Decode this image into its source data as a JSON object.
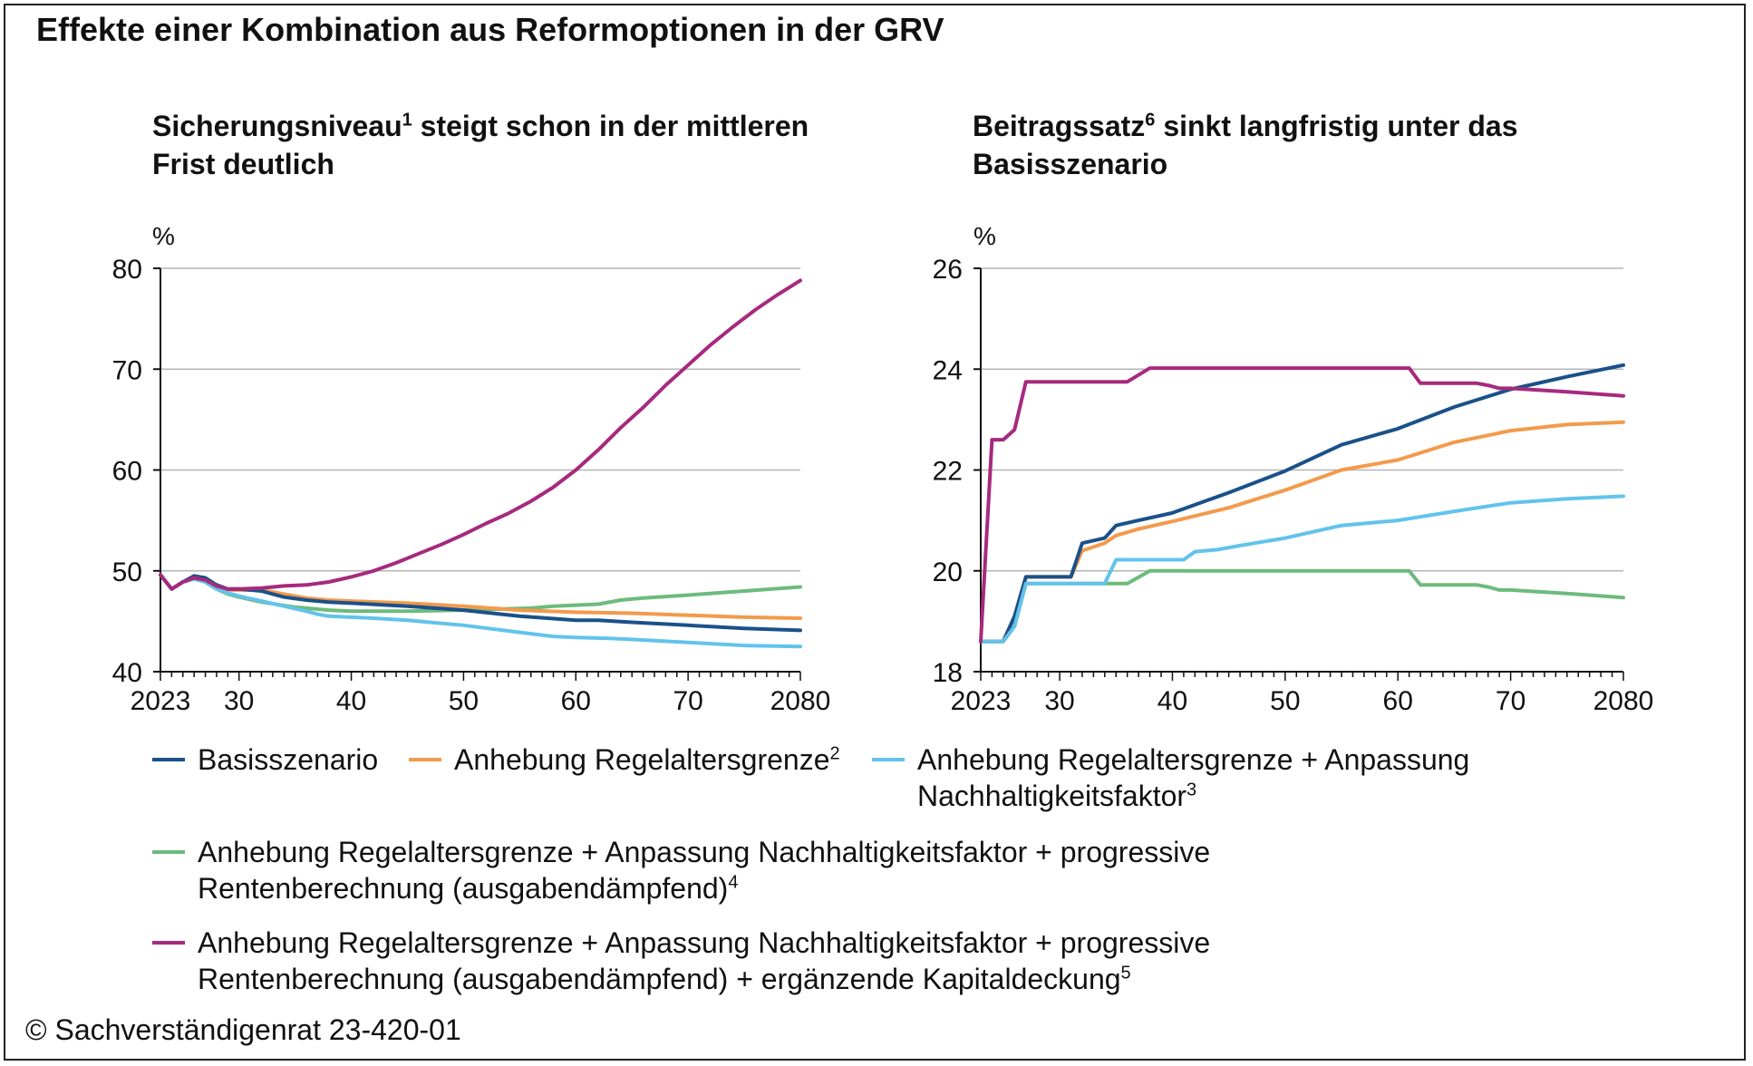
{
  "title": "Effekte einer Kombination aus Reformoptionen in der GRV",
  "copyright": "© Sachverständigenrat 23-420-01",
  "colors": {
    "basis": "#1a5189",
    "regel": "#f39a4b",
    "nachhaltig": "#62c3ec",
    "progressiv": "#6cbb7c",
    "kapital": "#a62a7e"
  },
  "legend": [
    {
      "key": "basis",
      "label": "Basisszenario",
      "sup": ""
    },
    {
      "key": "regel",
      "label": "Anhebung Regelaltersgrenze",
      "sup": "2"
    },
    {
      "key": "nachhaltig",
      "label": "Anhebung Regelaltersgrenze + Anpassung Nachhaltigkeitsfaktor",
      "sup": "3"
    },
    {
      "key": "progressiv",
      "label": "Anhebung Regelaltersgrenze + Anpassung Nachhaltigkeitsfaktor + progressive Rentenberechnung (ausgabendämpfend)",
      "sup": "4"
    },
    {
      "key": "kapital",
      "label": "Anhebung Regelaltersgrenze + Anpassung Nachhaltigkeitsfaktor + progressive Rentenberechnung (ausgabendämpfend) + ergänzende Kapitaldeckung",
      "sup": "5"
    }
  ],
  "chart_data": [
    {
      "type": "line",
      "title_main": "Sicherungsniveau",
      "title_sup": "1",
      "title_rest": " steigt schon in der mittleren Frist deutlich",
      "ylabel": "%",
      "xlim": [
        2023,
        2080
      ],
      "ylim": [
        40,
        80
      ],
      "yticks": [
        40,
        50,
        60,
        70,
        80
      ],
      "xticks": [
        {
          "v": 2023,
          "label": "2023"
        },
        {
          "v": 2030,
          "label": "30"
        },
        {
          "v": 2040,
          "label": "40"
        },
        {
          "v": 2050,
          "label": "50"
        },
        {
          "v": 2060,
          "label": "60"
        },
        {
          "v": 2070,
          "label": "70"
        },
        {
          "v": 2080,
          "label": "2080"
        }
      ],
      "grid": "horizontal",
      "series": [
        {
          "key": "progressiv",
          "points": [
            [
              2023,
              49.6
            ],
            [
              2024,
              48.2
            ],
            [
              2025,
              48.9
            ],
            [
              2026,
              49.2
            ],
            [
              2027,
              48.9
            ],
            [
              2028,
              48.2
            ],
            [
              2029,
              47.7
            ],
            [
              2030,
              47.4
            ],
            [
              2032,
              46.9
            ],
            [
              2035,
              46.4
            ],
            [
              2038,
              46.1
            ],
            [
              2040,
              46
            ],
            [
              2045,
              46
            ],
            [
              2050,
              46.1
            ],
            [
              2053,
              46.2
            ],
            [
              2056,
              46.3
            ],
            [
              2058,
              46.5
            ],
            [
              2060,
              46.6
            ],
            [
              2062,
              46.7
            ],
            [
              2064,
              47.1
            ],
            [
              2066,
              47.3
            ],
            [
              2070,
              47.6
            ],
            [
              2075,
              48
            ],
            [
              2080,
              48.4
            ]
          ]
        },
        {
          "key": "regel",
          "points": [
            [
              2023,
              49.6
            ],
            [
              2024,
              48.2
            ],
            [
              2025,
              48.9
            ],
            [
              2026,
              49.3
            ],
            [
              2027,
              49.1
            ],
            [
              2028,
              48.4
            ],
            [
              2029,
              48.1
            ],
            [
              2030,
              48.1
            ],
            [
              2032,
              48.1
            ],
            [
              2034,
              47.7
            ],
            [
              2036,
              47.3
            ],
            [
              2038,
              47.1
            ],
            [
              2040,
              47
            ],
            [
              2045,
              46.8
            ],
            [
              2050,
              46.5
            ],
            [
              2055,
              46.1
            ],
            [
              2060,
              45.9
            ],
            [
              2065,
              45.8
            ],
            [
              2070,
              45.6
            ],
            [
              2075,
              45.4
            ],
            [
              2080,
              45.3
            ]
          ]
        },
        {
          "key": "basis",
          "points": [
            [
              2023,
              49.6
            ],
            [
              2024,
              48.2
            ],
            [
              2025,
              48.9
            ],
            [
              2026,
              49.5
            ],
            [
              2027,
              49.3
            ],
            [
              2028,
              48.6
            ],
            [
              2029,
              48.2
            ],
            [
              2030,
              48.2
            ],
            [
              2032,
              48
            ],
            [
              2034,
              47.4
            ],
            [
              2036,
              47.1
            ],
            [
              2038,
              46.9
            ],
            [
              2040,
              46.8
            ],
            [
              2045,
              46.5
            ],
            [
              2050,
              46.1
            ],
            [
              2055,
              45.5
            ],
            [
              2060,
              45.1
            ],
            [
              2062,
              45.1
            ],
            [
              2065,
              44.9
            ],
            [
              2070,
              44.6
            ],
            [
              2075,
              44.3
            ],
            [
              2080,
              44.1
            ]
          ]
        },
        {
          "key": "nachhaltig",
          "points": [
            [
              2023,
              49.6
            ],
            [
              2024,
              48.2
            ],
            [
              2025,
              48.9
            ],
            [
              2026,
              49.2
            ],
            [
              2027,
              48.9
            ],
            [
              2028,
              48.2
            ],
            [
              2029,
              47.8
            ],
            [
              2030,
              47.5
            ],
            [
              2032,
              47
            ],
            [
              2034,
              46.5
            ],
            [
              2036,
              46
            ],
            [
              2037,
              45.7
            ],
            [
              2038,
              45.5
            ],
            [
              2040,
              45.4
            ],
            [
              2042,
              45.3
            ],
            [
              2045,
              45.1
            ],
            [
              2050,
              44.6
            ],
            [
              2055,
              43.9
            ],
            [
              2058,
              43.5
            ],
            [
              2060,
              43.4
            ],
            [
              2063,
              43.3
            ],
            [
              2065,
              43.2
            ],
            [
              2070,
              42.9
            ],
            [
              2075,
              42.6
            ],
            [
              2080,
              42.5
            ]
          ]
        },
        {
          "key": "kapital",
          "points": [
            [
              2023,
              49.6
            ],
            [
              2024,
              48.2
            ],
            [
              2025,
              48.9
            ],
            [
              2026,
              49.3
            ],
            [
              2027,
              49.1
            ],
            [
              2028,
              48.5
            ],
            [
              2029,
              48.2
            ],
            [
              2030,
              48.2
            ],
            [
              2032,
              48.3
            ],
            [
              2034,
              48.5
            ],
            [
              2036,
              48.6
            ],
            [
              2038,
              48.9
            ],
            [
              2040,
              49.4
            ],
            [
              2042,
              50
            ],
            [
              2044,
              50.8
            ],
            [
              2046,
              51.7
            ],
            [
              2048,
              52.6
            ],
            [
              2050,
              53.6
            ],
            [
              2052,
              54.7
            ],
            [
              2054,
              55.7
            ],
            [
              2056,
              56.9
            ],
            [
              2058,
              58.3
            ],
            [
              2060,
              60
            ],
            [
              2062,
              62
            ],
            [
              2064,
              64.2
            ],
            [
              2066,
              66.2
            ],
            [
              2068,
              68.4
            ],
            [
              2070,
              70.4
            ],
            [
              2072,
              72.4
            ],
            [
              2074,
              74.2
            ],
            [
              2076,
              75.9
            ],
            [
              2078,
              77.4
            ],
            [
              2080,
              78.8
            ]
          ]
        }
      ]
    },
    {
      "type": "line",
      "title_main": "Beitragssatz",
      "title_sup": "6",
      "title_rest": " sinkt langfristig unter das Basisszenario",
      "ylabel": "%",
      "xlim": [
        2023,
        2080
      ],
      "ylim": [
        18,
        26
      ],
      "yticks": [
        18,
        20,
        22,
        24,
        26
      ],
      "xticks": [
        {
          "v": 2023,
          "label": "2023"
        },
        {
          "v": 2030,
          "label": "30"
        },
        {
          "v": 2040,
          "label": "40"
        },
        {
          "v": 2050,
          "label": "50"
        },
        {
          "v": 2060,
          "label": "60"
        },
        {
          "v": 2070,
          "label": "70"
        },
        {
          "v": 2080,
          "label": "2080"
        }
      ],
      "grid": "horizontal",
      "series": [
        {
          "key": "progressiv",
          "points": [
            [
              2023,
              18.6
            ],
            [
              2025,
              18.6
            ],
            [
              2026,
              18.9
            ],
            [
              2027,
              19.75
            ],
            [
              2030,
              19.75
            ],
            [
              2035,
              19.75
            ],
            [
              2036,
              19.75
            ],
            [
              2038,
              20
            ],
            [
              2045,
              20
            ],
            [
              2050,
              20
            ],
            [
              2055,
              20
            ],
            [
              2060,
              20
            ],
            [
              2061,
              20
            ],
            [
              2062,
              19.72
            ],
            [
              2065,
              19.72
            ],
            [
              2067,
              19.72
            ],
            [
              2068,
              19.68
            ],
            [
              2069,
              19.62
            ],
            [
              2070,
              19.62
            ],
            [
              2075,
              19.55
            ],
            [
              2080,
              19.47
            ]
          ]
        },
        {
          "key": "nachhaltig",
          "points": [
            [
              2023,
              18.6
            ],
            [
              2025,
              18.6
            ],
            [
              2026,
              18.9
            ],
            [
              2027,
              19.75
            ],
            [
              2030,
              19.75
            ],
            [
              2034,
              19.75
            ],
            [
              2035,
              20.22
            ],
            [
              2041,
              20.22
            ],
            [
              2042,
              20.38
            ],
            [
              2044,
              20.42
            ],
            [
              2046,
              20.5
            ],
            [
              2050,
              20.65
            ],
            [
              2055,
              20.9
            ],
            [
              2060,
              21
            ],
            [
              2065,
              21.18
            ],
            [
              2070,
              21.35
            ],
            [
              2075,
              21.43
            ],
            [
              2080,
              21.48
            ]
          ]
        },
        {
          "key": "regel",
          "points": [
            [
              2023,
              18.6
            ],
            [
              2025,
              18.6
            ],
            [
              2026,
              19.1
            ],
            [
              2027,
              19.88
            ],
            [
              2031,
              19.88
            ],
            [
              2032,
              20.4
            ],
            [
              2034,
              20.55
            ],
            [
              2035,
              20.7
            ],
            [
              2037,
              20.83
            ],
            [
              2040,
              20.98
            ],
            [
              2045,
              21.25
            ],
            [
              2050,
              21.6
            ],
            [
              2055,
              22
            ],
            [
              2060,
              22.2
            ],
            [
              2065,
              22.55
            ],
            [
              2070,
              22.78
            ],
            [
              2075,
              22.9
            ],
            [
              2080,
              22.95
            ]
          ]
        },
        {
          "key": "basis",
          "points": [
            [
              2023,
              18.6
            ],
            [
              2025,
              18.6
            ],
            [
              2026,
              19.1
            ],
            [
              2027,
              19.88
            ],
            [
              2031,
              19.88
            ],
            [
              2032,
              20.55
            ],
            [
              2034,
              20.65
            ],
            [
              2035,
              20.9
            ],
            [
              2037,
              21
            ],
            [
              2040,
              21.15
            ],
            [
              2045,
              21.55
            ],
            [
              2050,
              21.98
            ],
            [
              2055,
              22.5
            ],
            [
              2060,
              22.82
            ],
            [
              2065,
              23.25
            ],
            [
              2070,
              23.6
            ],
            [
              2075,
              23.85
            ],
            [
              2080,
              24.08
            ]
          ]
        },
        {
          "key": "kapital",
          "points": [
            [
              2023,
              18.6
            ],
            [
              2024,
              22.6
            ],
            [
              2025,
              22.6
            ],
            [
              2026,
              22.8
            ],
            [
              2027,
              23.75
            ],
            [
              2036,
              23.75
            ],
            [
              2038,
              24.02
            ],
            [
              2045,
              24.02
            ],
            [
              2050,
              24.02
            ],
            [
              2055,
              24.02
            ],
            [
              2060,
              24.02
            ],
            [
              2061,
              24.02
            ],
            [
              2062,
              23.72
            ],
            [
              2067,
              23.72
            ],
            [
              2068,
              23.68
            ],
            [
              2069,
              23.62
            ],
            [
              2070,
              23.62
            ],
            [
              2075,
              23.55
            ],
            [
              2080,
              23.47
            ]
          ]
        }
      ]
    }
  ]
}
